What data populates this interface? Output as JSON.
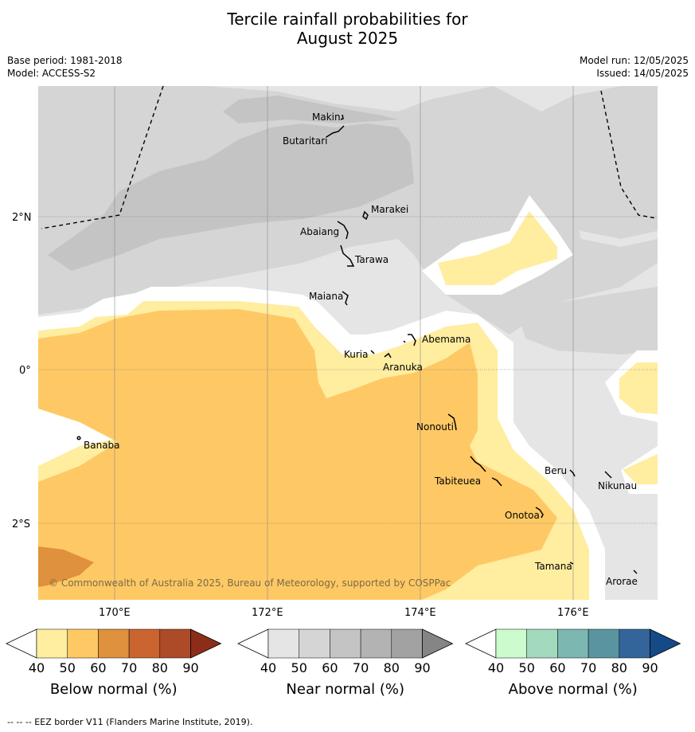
{
  "title_line1": "Tercile rainfall probabilities for",
  "title_line2": "August 2025",
  "base_period": "Base period: 1981-2018",
  "model": "Model: ACCESS-S2",
  "model_run": "Model run: 12/05/2025",
  "issued": "Issued: 14/05/2025",
  "copyright": "© Commonwealth of Australia 2025, Bureau of Meteorology, supported by COSPPac",
  "lat_labels": [
    "2°N",
    "0°",
    "2°S"
  ],
  "lon_labels": [
    "170°E",
    "172°E",
    "174°E",
    "176°E"
  ],
  "places": [
    "Makin",
    "Butaritari",
    "Marakei",
    "Abaiang",
    "Tarawa",
    "Maiana",
    "Abemama",
    "Kuria",
    "Aranuka",
    "Nonouti",
    "Banaba",
    "Tabiteuea",
    "Beru",
    "Nikunau",
    "Onotoa",
    "Tamana",
    "Arorae"
  ],
  "colorbars": [
    {
      "title": "Below normal (%)",
      "colors": [
        "#ffffff",
        "#ffeda0",
        "#fec965",
        "#e0913d",
        "#cb6530",
        "#ad4a28",
        "#8c2d1a"
      ],
      "ticks": [
        "40",
        "50",
        "60",
        "70",
        "80",
        "90"
      ]
    },
    {
      "title": "Near normal (%)",
      "colors": [
        "#ffffff",
        "#e5e5e5",
        "#d5d5d5",
        "#c4c4c4",
        "#b3b3b3",
        "#a2a2a2",
        "#858585"
      ],
      "ticks": [
        "40",
        "50",
        "60",
        "70",
        "80",
        "90"
      ]
    },
    {
      "title": "Above normal (%)",
      "colors": [
        "#ffffff",
        "#ccfccd",
        "#a3d9bd",
        "#7cb7b2",
        "#5a94a0",
        "#33649a",
        "#144b86"
      ],
      "ticks": [
        "40",
        "50",
        "60",
        "70",
        "80",
        "90"
      ]
    }
  ],
  "footer": "--  --  -- EEZ border V11 (Flanders Marine Institute, 2019)."
}
